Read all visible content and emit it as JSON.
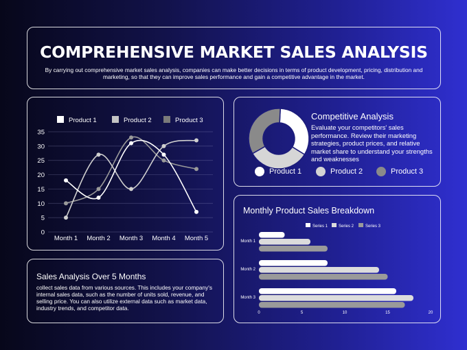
{
  "header": {
    "title": "COMPREHENSIVE MARKET SALES ANALYSIS",
    "description": "By carrying out comprehensive market sales analysis, companies can make better decisions in terms of product development, pricing, distribution and marketing, so that they can improve sales performance and gain a competitive advantage in the market."
  },
  "competitive": {
    "title": "Competitive Analysis",
    "description": "Evaluate your competitors' sales performance. Review their marketing strategies, product prices, and relative market share to understand your strengths and weaknesses",
    "legend": [
      "Product 1",
      "Product 2",
      "Product 3"
    ]
  },
  "sales_text": {
    "title": "Sales Analysis Over 5 Months",
    "body": "collect sales data from various sources. This includes your company's internal sales data, such as the number of units sold, revenue, and selling price. You can also utilize external data such as market data, industry trends, and competitor data."
  },
  "colors": {
    "product1": "#ffffff",
    "product2": "#c9c9c9",
    "product3": "#8a8a8a",
    "panel_border": "#ffffff",
    "background_dark": "#07071a",
    "background_light": "#2f2fd0"
  },
  "chart_data": [
    {
      "type": "line",
      "title": "",
      "x": [
        "Month 1",
        "Month 2",
        "Month 3",
        "Month 4",
        "Month 5"
      ],
      "yticks": [
        0,
        5,
        10,
        15,
        20,
        25,
        30,
        35
      ],
      "ylim": [
        0,
        35
      ],
      "grid": true,
      "legend_position": "top",
      "series": [
        {
          "name": "Product 1",
          "values": [
            18,
            12,
            31,
            27,
            7
          ]
        },
        {
          "name": "Product 2",
          "values": [
            5,
            27,
            15,
            30,
            32
          ]
        },
        {
          "name": "Product 3",
          "values": [
            10,
            15,
            33,
            25,
            22
          ]
        }
      ]
    },
    {
      "type": "pie",
      "donut": true,
      "labels": [
        "Product 1",
        "Product 2",
        "Product 3"
      ],
      "values": [
        33,
        33,
        34
      ]
    },
    {
      "type": "bar",
      "orientation": "horizontal",
      "title": "Monthly Product Sales Breakdown",
      "categories": [
        "Month 1",
        "Month 2",
        "Month 3"
      ],
      "xticks": [
        0,
        5,
        10,
        15,
        20
      ],
      "xlim": [
        0,
        20
      ],
      "legend_position": "top",
      "series": [
        {
          "name": "Series 1",
          "values": [
            3,
            8,
            16
          ]
        },
        {
          "name": "Series 2",
          "values": [
            6,
            14,
            18
          ]
        },
        {
          "name": "Series 3",
          "values": [
            8,
            15,
            17
          ]
        }
      ]
    }
  ]
}
